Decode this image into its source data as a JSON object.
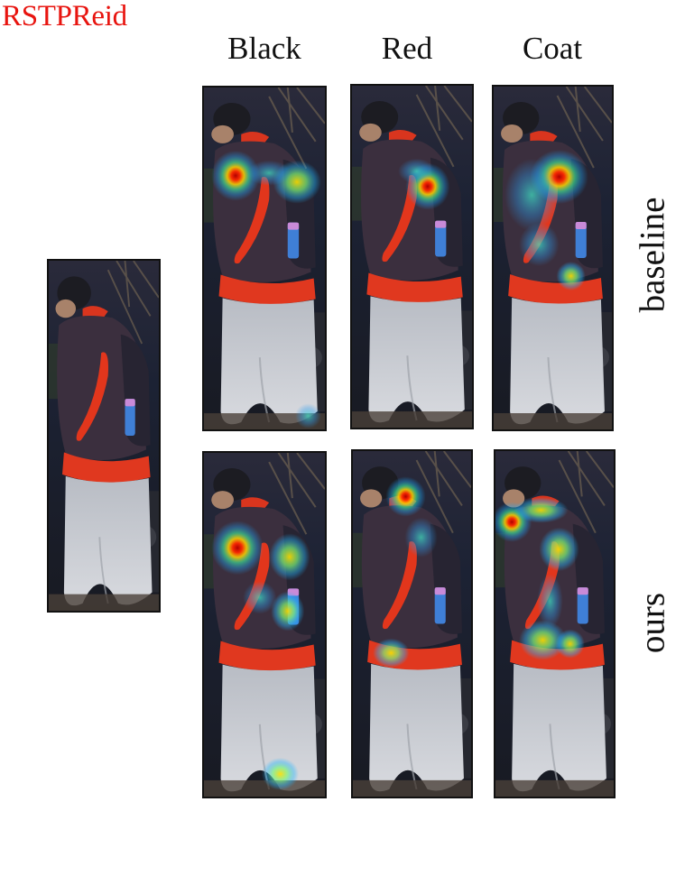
{
  "dataset_label": "RSTPReid",
  "columns": [
    "Black",
    "Red",
    "Coat"
  ],
  "rows": [
    "baseline",
    "ours"
  ],
  "colors": {
    "dataset_label": "#e8140f",
    "text": "#111111",
    "jacket": "#3b2f3e",
    "red_stripe": "#e2361c",
    "pants": "#c9ccd2",
    "background_dark": "#1a1e30",
    "bottle": "#3f7fd6"
  },
  "heatmap_colormap": "jet"
}
